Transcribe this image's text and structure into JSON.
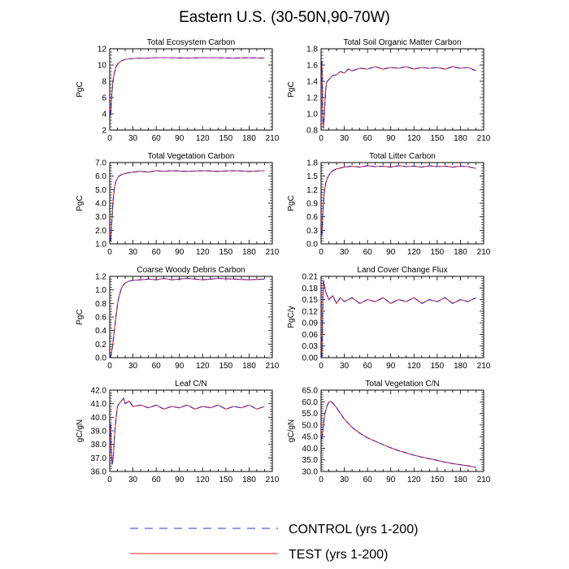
{
  "figure": {
    "title": "Eastern U.S. (30-50N,90-70W)"
  },
  "legend": {
    "entries": [
      {
        "name": "CONTROL (yrs 1-200)",
        "color": "#3030d0",
        "style": "dashed"
      },
      {
        "name": "TEST (yrs 1-200)",
        "color": "#ff2020",
        "style": "solid"
      }
    ]
  },
  "chart_data": [
    {
      "type": "line",
      "title": "Total Ecosystem Carbon",
      "xlabel": "",
      "ylabel": "PgC",
      "xlim": [
        0,
        210
      ],
      "ylim": [
        2,
        12
      ],
      "xticks": [
        0,
        30,
        60,
        90,
        120,
        150,
        180,
        210
      ],
      "yticks": [
        2,
        4,
        6,
        8,
        10,
        12
      ],
      "ytick_labels": [
        "2",
        "4",
        "6",
        "8",
        "10",
        "12"
      ],
      "x": [
        1,
        2,
        3,
        4,
        5,
        6,
        8,
        10,
        12,
        15,
        20,
        25,
        30,
        40,
        50,
        60,
        80,
        100,
        120,
        140,
        160,
        180,
        200
      ],
      "series": [
        {
          "name": "CONTROL",
          "values": [
            3.8,
            5.5,
            6.8,
            7.8,
            8.5,
            9.0,
            9.7,
            10.1,
            10.3,
            10.5,
            10.7,
            10.75,
            10.8,
            10.85,
            10.85,
            10.9,
            10.9,
            10.85,
            10.9,
            10.9,
            10.85,
            10.9,
            10.85
          ]
        },
        {
          "name": "TEST",
          "values": [
            3.8,
            5.5,
            6.8,
            7.8,
            8.5,
            9.0,
            9.7,
            10.1,
            10.3,
            10.5,
            10.7,
            10.75,
            10.8,
            10.85,
            10.85,
            10.9,
            10.9,
            10.85,
            10.9,
            10.9,
            10.85,
            10.9,
            10.85
          ]
        }
      ]
    },
    {
      "type": "line",
      "title": "Total Soil Organic Matter Carbon",
      "xlabel": "",
      "ylabel": "PgC",
      "xlim": [
        0,
        210
      ],
      "ylim": [
        0.8,
        1.8
      ],
      "xticks": [
        0,
        30,
        60,
        90,
        120,
        150,
        180,
        210
      ],
      "yticks": [
        0.8,
        1.0,
        1.2,
        1.4,
        1.6,
        1.8
      ],
      "ytick_labels": [
        "0.8",
        "1.0",
        "1.2",
        "1.4",
        "1.6",
        "1.8"
      ],
      "x": [
        1,
        2,
        3,
        4,
        5,
        6,
        7,
        8,
        10,
        12,
        15,
        20,
        25,
        30,
        35,
        40,
        50,
        60,
        70,
        80,
        90,
        100,
        110,
        120,
        130,
        140,
        150,
        160,
        170,
        180,
        190,
        200
      ],
      "series": [
        {
          "name": "CONTROL",
          "values": [
            1.65,
            1.0,
            0.82,
            0.95,
            1.15,
            1.3,
            1.38,
            1.4,
            1.42,
            1.44,
            1.47,
            1.48,
            1.52,
            1.5,
            1.55,
            1.53,
            1.56,
            1.55,
            1.58,
            1.55,
            1.57,
            1.56,
            1.58,
            1.55,
            1.57,
            1.56,
            1.57,
            1.55,
            1.58,
            1.56,
            1.57,
            1.53
          ]
        },
        {
          "name": "TEST",
          "values": [
            1.65,
            1.0,
            0.82,
            0.95,
            1.15,
            1.3,
            1.38,
            1.4,
            1.42,
            1.44,
            1.47,
            1.48,
            1.52,
            1.5,
            1.55,
            1.53,
            1.56,
            1.55,
            1.58,
            1.55,
            1.57,
            1.56,
            1.58,
            1.55,
            1.57,
            1.56,
            1.57,
            1.55,
            1.58,
            1.56,
            1.57,
            1.53
          ]
        }
      ]
    },
    {
      "type": "line",
      "title": "Total Vegetation Carbon",
      "xlabel": "",
      "ylabel": "PgC",
      "xlim": [
        0,
        210
      ],
      "ylim": [
        1.0,
        7.0
      ],
      "xticks": [
        0,
        30,
        60,
        90,
        120,
        150,
        180,
        210
      ],
      "yticks": [
        1,
        2,
        3,
        4,
        5,
        6,
        7
      ],
      "ytick_labels": [
        "1.0",
        "2.0",
        "3.0",
        "4.0",
        "5.0",
        "6.0",
        "7.0"
      ],
      "x": [
        1,
        2,
        3,
        4,
        5,
        6,
        8,
        10,
        12,
        15,
        20,
        25,
        30,
        40,
        50,
        60,
        70,
        80,
        100,
        120,
        140,
        160,
        180,
        200
      ],
      "series": [
        {
          "name": "CONTROL",
          "values": [
            1.2,
            2.0,
            3.0,
            3.9,
            4.6,
            5.1,
            5.6,
            5.85,
            6.0,
            6.1,
            6.2,
            6.25,
            6.3,
            6.35,
            6.3,
            6.4,
            6.35,
            6.4,
            6.35,
            6.4,
            6.35,
            6.4,
            6.35,
            6.4
          ]
        },
        {
          "name": "TEST",
          "values": [
            1.2,
            2.0,
            3.0,
            3.9,
            4.6,
            5.1,
            5.6,
            5.85,
            6.0,
            6.1,
            6.2,
            6.25,
            6.3,
            6.35,
            6.3,
            6.4,
            6.35,
            6.4,
            6.35,
            6.4,
            6.35,
            6.4,
            6.35,
            6.4
          ]
        }
      ]
    },
    {
      "type": "line",
      "title": "Total Litter Carbon",
      "xlabel": "",
      "ylabel": "PgC",
      "xlim": [
        0,
        210
      ],
      "ylim": [
        0.0,
        1.8
      ],
      "xticks": [
        0,
        30,
        60,
        90,
        120,
        150,
        180,
        210
      ],
      "yticks": [
        0,
        0.3,
        0.6,
        0.9,
        1.2,
        1.5,
        1.8
      ],
      "ytick_labels": [
        "0.0",
        "0.3",
        "0.6",
        "0.9",
        "1.2",
        "1.5",
        "1.8"
      ],
      "x": [
        1,
        2,
        3,
        4,
        5,
        6,
        8,
        10,
        12,
        15,
        20,
        25,
        30,
        40,
        50,
        60,
        70,
        80,
        90,
        100,
        110,
        120,
        130,
        140,
        150,
        160,
        170,
        180,
        190,
        200
      ],
      "series": [
        {
          "name": "CONTROL",
          "values": [
            0.2,
            0.6,
            0.9,
            1.1,
            1.25,
            1.35,
            1.45,
            1.52,
            1.57,
            1.62,
            1.66,
            1.68,
            1.7,
            1.72,
            1.7,
            1.73,
            1.71,
            1.72,
            1.7,
            1.73,
            1.71,
            1.72,
            1.7,
            1.73,
            1.71,
            1.72,
            1.7,
            1.72,
            1.71,
            1.67
          ]
        },
        {
          "name": "TEST",
          "values": [
            0.2,
            0.6,
            0.9,
            1.1,
            1.25,
            1.35,
            1.45,
            1.52,
            1.57,
            1.62,
            1.66,
            1.68,
            1.7,
            1.72,
            1.7,
            1.73,
            1.71,
            1.72,
            1.7,
            1.73,
            1.71,
            1.72,
            1.7,
            1.73,
            1.71,
            1.72,
            1.7,
            1.72,
            1.71,
            1.67
          ]
        }
      ]
    },
    {
      "type": "line",
      "title": "Coarse Woody Debris Carbon",
      "xlabel": "",
      "ylabel": "PgC",
      "xlim": [
        0,
        210
      ],
      "ylim": [
        0.0,
        1.2
      ],
      "xticks": [
        0,
        30,
        60,
        90,
        120,
        150,
        180,
        210
      ],
      "yticks": [
        0,
        0.2,
        0.4,
        0.6,
        0.8,
        1.0,
        1.2
      ],
      "ytick_labels": [
        "0.0",
        "0.2",
        "0.4",
        "0.6",
        "0.8",
        "1.0",
        "1.2"
      ],
      "x": [
        1,
        2,
        4,
        6,
        8,
        10,
        12,
        15,
        18,
        20,
        25,
        30,
        40,
        50,
        60,
        70,
        80,
        90,
        100,
        120,
        140,
        160,
        180,
        200
      ],
      "series": [
        {
          "name": "CONTROL",
          "values": [
            0.0,
            0.05,
            0.2,
            0.4,
            0.6,
            0.78,
            0.9,
            1.02,
            1.08,
            1.1,
            1.13,
            1.14,
            1.15,
            1.16,
            1.15,
            1.17,
            1.15,
            1.16,
            1.17,
            1.15,
            1.17,
            1.16,
            1.15,
            1.16
          ]
        },
        {
          "name": "TEST",
          "values": [
            0.0,
            0.05,
            0.2,
            0.4,
            0.6,
            0.78,
            0.9,
            1.02,
            1.08,
            1.1,
            1.13,
            1.14,
            1.15,
            1.16,
            1.15,
            1.17,
            1.15,
            1.16,
            1.17,
            1.15,
            1.17,
            1.16,
            1.15,
            1.16
          ]
        }
      ]
    },
    {
      "type": "line",
      "title": "Land Cover Change Flux",
      "xlabel": "",
      "ylabel": "PgC/y",
      "xlim": [
        0,
        210
      ],
      "ylim": [
        0.0,
        0.21
      ],
      "xticks": [
        0,
        30,
        60,
        90,
        120,
        150,
        180,
        210
      ],
      "yticks": [
        0,
        0.03,
        0.06,
        0.09,
        0.12,
        0.15,
        0.18,
        0.21
      ],
      "ytick_labels": [
        "0.00",
        "0.03",
        "0.06",
        "0.09",
        "0.12",
        "0.15",
        "0.18",
        "0.21"
      ],
      "x": [
        1,
        2,
        3,
        4,
        6,
        8,
        10,
        15,
        20,
        25,
        30,
        40,
        50,
        60,
        70,
        80,
        90,
        100,
        110,
        120,
        130,
        140,
        150,
        160,
        170,
        180,
        190,
        200
      ],
      "series": [
        {
          "name": "CONTROL",
          "values": [
            0.0,
            0.12,
            0.2,
            0.19,
            0.17,
            0.16,
            0.15,
            0.16,
            0.14,
            0.155,
            0.145,
            0.155,
            0.14,
            0.15,
            0.145,
            0.155,
            0.14,
            0.15,
            0.145,
            0.155,
            0.14,
            0.15,
            0.145,
            0.155,
            0.14,
            0.15,
            0.145,
            0.155
          ]
        },
        {
          "name": "TEST",
          "values": [
            0.0,
            0.12,
            0.2,
            0.19,
            0.17,
            0.16,
            0.15,
            0.16,
            0.14,
            0.155,
            0.145,
            0.155,
            0.14,
            0.15,
            0.145,
            0.155,
            0.14,
            0.15,
            0.145,
            0.155,
            0.14,
            0.15,
            0.145,
            0.155,
            0.14,
            0.15,
            0.145,
            0.155
          ]
        }
      ]
    },
    {
      "type": "line",
      "title": "Leaf C/N",
      "xlabel": "",
      "ylabel": "gC/gN",
      "xlim": [
        0,
        210
      ],
      "ylim": [
        36.0,
        42.0
      ],
      "xticks": [
        0,
        30,
        60,
        90,
        120,
        150,
        180,
        210
      ],
      "yticks": [
        36,
        37,
        38,
        39,
        40,
        41,
        42
      ],
      "ytick_labels": [
        "36.0",
        "37.0",
        "38.0",
        "39.0",
        "40.0",
        "41.0",
        "42.0"
      ],
      "x": [
        1,
        2,
        3,
        4,
        5,
        6,
        8,
        10,
        12,
        15,
        18,
        20,
        25,
        30,
        40,
        50,
        60,
        70,
        80,
        90,
        100,
        110,
        120,
        130,
        140,
        150,
        160,
        170,
        180,
        190,
        200
      ],
      "series": [
        {
          "name": "CONTROL",
          "values": [
            39.5,
            37.5,
            36.5,
            36.8,
            37.5,
            38.5,
            39.8,
            40.8,
            41.0,
            41.2,
            41.4,
            41.0,
            41.2,
            40.8,
            40.9,
            40.7,
            40.9,
            40.6,
            40.8,
            40.7,
            40.9,
            40.6,
            40.8,
            40.7,
            40.9,
            40.6,
            40.8,
            40.7,
            40.9,
            40.6,
            40.8
          ]
        },
        {
          "name": "TEST",
          "values": [
            39.5,
            37.5,
            36.5,
            36.8,
            37.5,
            38.5,
            39.8,
            40.8,
            41.0,
            41.2,
            41.4,
            41.0,
            41.2,
            40.8,
            40.9,
            40.7,
            40.9,
            40.6,
            40.8,
            40.7,
            40.9,
            40.6,
            40.8,
            40.7,
            40.9,
            40.6,
            40.8,
            40.7,
            40.9,
            40.6,
            40.8
          ]
        }
      ]
    },
    {
      "type": "line",
      "title": "Total Vegetation C/N",
      "xlabel": "",
      "ylabel": "gC/gN",
      "xlim": [
        0,
        210
      ],
      "ylim": [
        30.0,
        65.0
      ],
      "xticks": [
        0,
        30,
        60,
        90,
        120,
        150,
        180,
        210
      ],
      "yticks": [
        30,
        35,
        40,
        45,
        50,
        55,
        60,
        65
      ],
      "ytick_labels": [
        "30.0",
        "35.0",
        "40.0",
        "45.0",
        "50.0",
        "55.0",
        "60.0",
        "65.0"
      ],
      "x": [
        1,
        3,
        5,
        8,
        10,
        12,
        15,
        20,
        25,
        30,
        40,
        50,
        60,
        70,
        80,
        90,
        100,
        110,
        120,
        130,
        140,
        150,
        160,
        170,
        180,
        190,
        200
      ],
      "series": [
        {
          "name": "CONTROL",
          "values": [
            44,
            50,
            55,
            58.5,
            59.8,
            60.2,
            59.5,
            57.5,
            55,
            52.5,
            49,
            46.5,
            44.5,
            43,
            41.5,
            40.2,
            39,
            38,
            37,
            36.2,
            35.5,
            34.8,
            34,
            33.4,
            32.9,
            32.4,
            31.8
          ]
        },
        {
          "name": "TEST",
          "values": [
            44,
            50,
            55,
            58.5,
            59.8,
            60.2,
            59.5,
            57.5,
            55,
            52.5,
            49,
            46.5,
            44.5,
            43,
            41.5,
            40.2,
            39,
            38,
            37,
            36.2,
            35.5,
            34.8,
            34,
            33.4,
            32.9,
            32.4,
            31.8
          ]
        }
      ]
    }
  ]
}
